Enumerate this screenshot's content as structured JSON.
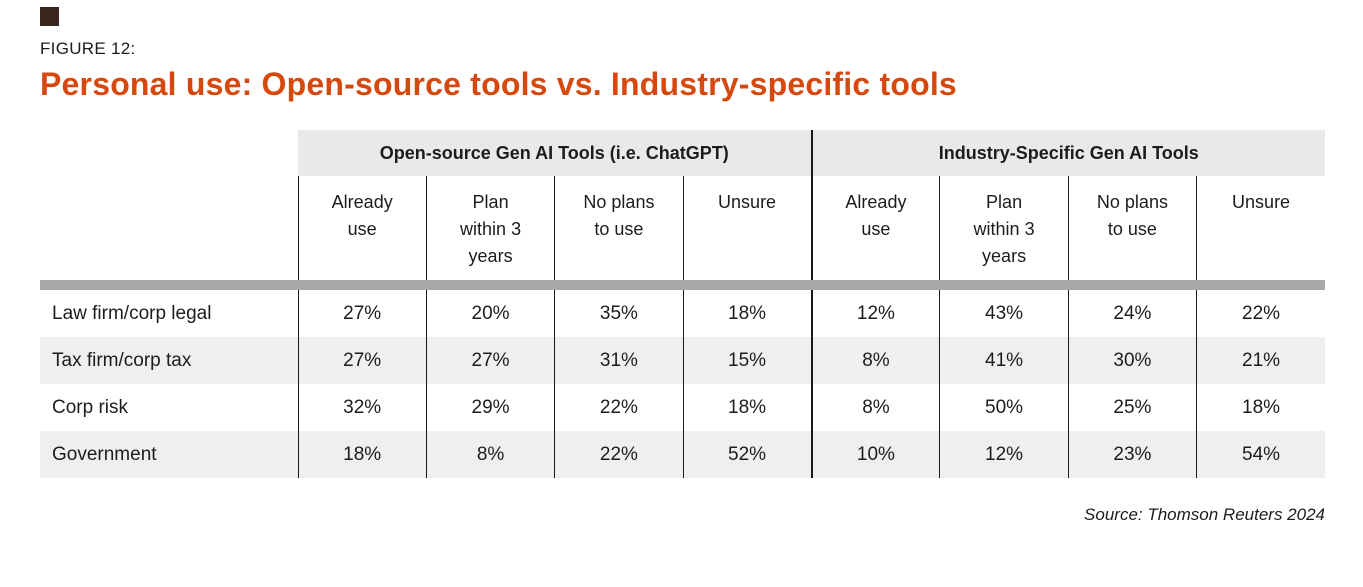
{
  "brand": {
    "logo_square_color": "#3a261a"
  },
  "figure": {
    "label": "FIGURE 12:",
    "title": "Personal use: Open-source tools vs. Industry-specific tools"
  },
  "colors": {
    "title_accent": "#d5480e",
    "group_header_bg": "#e9e9e9",
    "row_alt_bg": "#efefef",
    "thick_divider_bar": "#a8a8a8",
    "grid_line": "#1a1a1a",
    "text": "#1c1c1c"
  },
  "source_note": "Source: Thomson Reuters 2024",
  "chart_data": {
    "type": "table",
    "title": "Personal use: Open-source tools vs. Industry-specific tools",
    "groups": [
      {
        "label": "Open-source Gen AI Tools (i.e. ChatGPT)",
        "columns": [
          "Already\nuse",
          "Plan\nwithin 3\nyears",
          "No plans\nto use",
          "Unsure"
        ]
      },
      {
        "label": "Industry-Specific Gen AI Tools",
        "columns": [
          "Already\nuse",
          "Plan\nwithin 3\nyears",
          "No plans\nto use",
          "Unsure"
        ]
      }
    ],
    "rows": [
      {
        "label": "Law firm/corp legal",
        "values": [
          "27%",
          "20%",
          "35%",
          "18%",
          "12%",
          "43%",
          "24%",
          "22%"
        ]
      },
      {
        "label": "Tax firm/corp tax",
        "values": [
          "27%",
          "27%",
          "31%",
          "15%",
          "8%",
          "41%",
          "30%",
          "21%"
        ]
      },
      {
        "label": "Corp risk",
        "values": [
          "32%",
          "29%",
          "22%",
          "18%",
          "8%",
          "50%",
          "25%",
          "18%"
        ]
      },
      {
        "label": "Government",
        "values": [
          "18%",
          "8%",
          "22%",
          "52%",
          "10%",
          "12%",
          "23%",
          "54%"
        ]
      }
    ]
  }
}
